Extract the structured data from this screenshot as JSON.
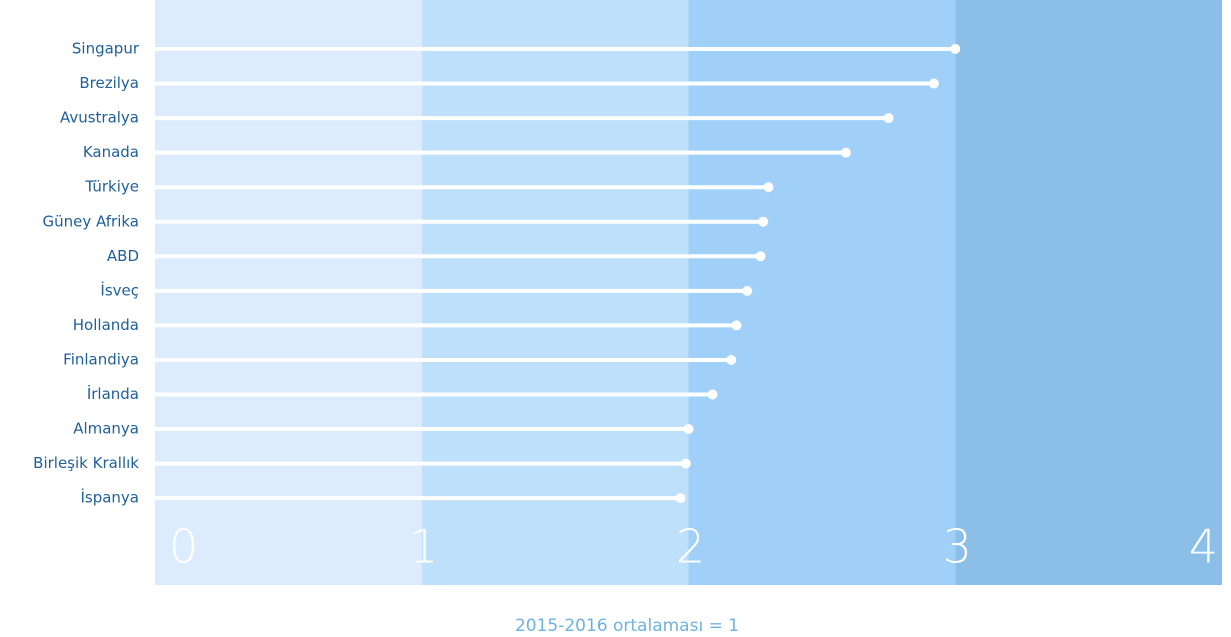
{
  "chart_data": {
    "type": "lollipop",
    "categories": [
      "Singapur",
      "Brezilya",
      "Avustralya",
      "Kanada",
      "Türkiye",
      "Güney Afrika",
      "ABD",
      "İsveç",
      "Hollanda",
      "Finlandiya",
      "İrlanda",
      "Almanya",
      "Birleşik Krallık",
      "İspanya"
    ],
    "values": [
      3.0,
      2.92,
      2.75,
      2.59,
      2.3,
      2.28,
      2.27,
      2.22,
      2.18,
      2.16,
      2.09,
      2.0,
      1.99,
      1.97
    ],
    "color": "#ffffff",
    "xlim": [
      0,
      4
    ],
    "xticks": [
      0,
      1,
      2,
      3,
      4
    ],
    "band_colors": [
      "#dcecfc",
      "#bfe0fb",
      "#a0d0f8",
      "#8bbfe8"
    ],
    "note": "2015-2016 ortalaması = 1"
  }
}
